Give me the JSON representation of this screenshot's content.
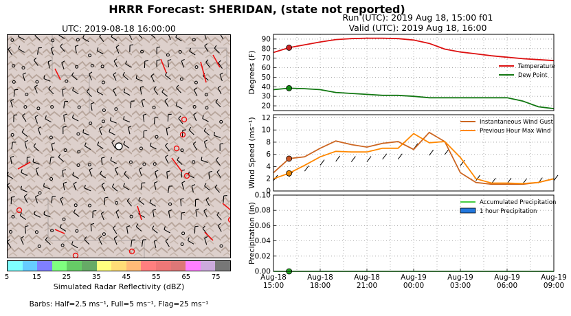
{
  "title": "HRRR Forecast: SHERIDAN, (state not reported)",
  "run_line": "Run (UTC): 2019 Aug 18, 15:00 f01",
  "valid_line": "Valid (UTC): 2019 Aug 18, 16:00",
  "map": {
    "time_label": "UTC: 2019-08-18 16:00:00",
    "colorbar_label": "Simulated Radar Reflectivity (dBZ)",
    "colorbar_ticks": [
      "5",
      "15",
      "25",
      "35",
      "45",
      "55",
      "65",
      "75"
    ],
    "colorbar_colors": [
      "#7fffff",
      "#66ccff",
      "#7f7fff",
      "#7fff7f",
      "#66cc66",
      "#66aa66",
      "#ffff7f",
      "#ffdd77",
      "#ffbb77",
      "#ff7f7f",
      "#ee7777",
      "#dd7777",
      "#ff7fff",
      "#ccaadd",
      "#777777"
    ],
    "barbs_note": "Barbs: Half=2.5 ms⁻¹, Full=5 ms⁻¹, Flag=25 ms⁻¹"
  },
  "chart_data": [
    {
      "type": "line",
      "ylabel": "Degrees (F)",
      "ylim": [
        15,
        95
      ],
      "yticks": [
        20,
        30,
        40,
        50,
        60,
        70,
        80,
        90
      ],
      "x": [
        0,
        1,
        2,
        3,
        4,
        5,
        6,
        7,
        8,
        9,
        10,
        11,
        12,
        13,
        14,
        15,
        16,
        17,
        18
      ],
      "series": [
        {
          "name": "Temperature",
          "color": "#dd1111",
          "values": [
            76,
            81,
            84,
            87,
            89.5,
            90.5,
            91,
            91,
            90.5,
            89,
            85.5,
            79.5,
            76.5,
            74.5,
            72.5,
            71,
            69.5,
            68.5,
            67.5
          ]
        },
        {
          "name": "Dew Point",
          "color": "#117711",
          "values": [
            37,
            38.5,
            38,
            37,
            34,
            33,
            32,
            31,
            31,
            30,
            28.5,
            28.5,
            28.5,
            28.5,
            28.5,
            28.5,
            25,
            19,
            17
          ]
        }
      ],
      "markers": [
        {
          "series": "Temperature",
          "x": 1,
          "y": 81
        },
        {
          "series": "Dew Point",
          "x": 1,
          "y": 38.5
        }
      ],
      "legend": "right",
      "grid": true
    },
    {
      "type": "line",
      "ylabel": "Wind Speed (ms⁻¹)",
      "ylim": [
        0,
        12.5
      ],
      "yticks": [
        0,
        2,
        4,
        6,
        8,
        10,
        12
      ],
      "x": [
        0,
        1,
        2,
        3,
        4,
        5,
        6,
        7,
        8,
        9,
        10,
        11,
        12,
        13,
        14,
        15,
        16,
        17,
        18
      ],
      "series": [
        {
          "name": "Instantaneous Wind Gust",
          "color": "#cc6622",
          "values": [
            3,
            5.3,
            5.6,
            7,
            8.2,
            7.6,
            7.2,
            7.8,
            8.1,
            6.8,
            9.6,
            8.1,
            3,
            1.4,
            1.1,
            1.1,
            1.1,
            1.4,
            2
          ]
        },
        {
          "name": "Previous Hour Max Wind",
          "color": "#ff8800",
          "values": [
            2,
            2.9,
            4.2,
            5.6,
            6.5,
            6.4,
            6.4,
            7,
            7,
            9.4,
            7.9,
            8.1,
            5.5,
            2,
            1.3,
            1.3,
            1.2,
            1.4,
            2
          ]
        }
      ],
      "markers": [
        {
          "series": "Instantaneous Wind Gust",
          "x": 1,
          "y": 5.3
        },
        {
          "series": "Previous Hour Max Wind",
          "x": 1,
          "y": 2.9
        }
      ],
      "legend": "top-right",
      "grid": true
    },
    {
      "type": "line",
      "ylabel": "Precipitation (in)",
      "ylim": [
        0,
        0.1
      ],
      "yticks": [
        "0.00",
        "0.02",
        "0.04",
        "0.06",
        "0.08",
        "0.10"
      ],
      "x": [
        0,
        1,
        2,
        3,
        4,
        5,
        6,
        7,
        8,
        9,
        10,
        11,
        12,
        13,
        14,
        15,
        16,
        17,
        18
      ],
      "xticks": [
        0,
        3,
        6,
        9,
        12,
        15,
        18
      ],
      "xtick_labels": [
        [
          "Aug-18",
          "15:00"
        ],
        [
          "Aug-18",
          "18:00"
        ],
        [
          "Aug-18",
          "21:00"
        ],
        [
          "Aug-19",
          "00:00"
        ],
        [
          "Aug-19",
          "03:00"
        ],
        [
          "Aug-19",
          "06:00"
        ],
        [
          "Aug-19",
          "09:00"
        ]
      ],
      "series": [
        {
          "name": "Accumulated Precipitation",
          "color": "#44cc44",
          "values": [
            0,
            0,
            0,
            0,
            0,
            0,
            0,
            0,
            0,
            0,
            0,
            0,
            0,
            0,
            0,
            0,
            0,
            0,
            0
          ]
        },
        {
          "name": "1 hour Precipitation",
          "color": "#2277dd",
          "type": "bar",
          "values": [
            0,
            0,
            0,
            0,
            0,
            0,
            0,
            0,
            0,
            0,
            0,
            0,
            0,
            0,
            0,
            0,
            0,
            0,
            0
          ]
        }
      ],
      "markers": [
        {
          "series": "Accumulated Precipitation",
          "x": 1,
          "y": 0
        }
      ],
      "legend": "top-right",
      "grid": true
    }
  ]
}
